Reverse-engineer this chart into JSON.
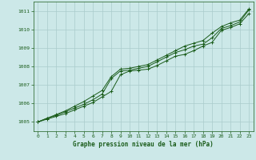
{
  "title": "Graphe pression niveau de la mer (hPa)",
  "background_color": "#cce8e8",
  "grid_color": "#aacccc",
  "line_color": "#1a5c1a",
  "marker_color": "#1a5c1a",
  "xlim": [
    -0.5,
    23.5
  ],
  "ylim": [
    1004.5,
    1011.5
  ],
  "yticks": [
    1005,
    1006,
    1007,
    1008,
    1009,
    1010,
    1011
  ],
  "xticks": [
    0,
    1,
    2,
    3,
    4,
    5,
    6,
    7,
    8,
    9,
    10,
    11,
    12,
    13,
    14,
    15,
    16,
    17,
    18,
    19,
    20,
    21,
    22,
    23
  ],
  "series": [
    [
      1005.0,
      1005.15,
      1005.3,
      1005.45,
      1005.65,
      1005.85,
      1006.05,
      1006.35,
      1006.65,
      1007.55,
      1007.75,
      1007.8,
      1007.85,
      1008.05,
      1008.3,
      1008.55,
      1008.65,
      1008.85,
      1009.1,
      1009.3,
      1009.95,
      1010.1,
      1010.3,
      1010.85
    ],
    [
      1005.0,
      1005.2,
      1005.35,
      1005.55,
      1005.75,
      1005.95,
      1006.2,
      1006.5,
      1007.35,
      1007.75,
      1007.8,
      1007.9,
      1008.0,
      1008.25,
      1008.5,
      1008.75,
      1008.9,
      1009.1,
      1009.2,
      1009.55,
      1010.05,
      1010.2,
      1010.4,
      1011.05
    ],
    [
      1005.0,
      1005.2,
      1005.4,
      1005.6,
      1005.85,
      1006.1,
      1006.4,
      1006.7,
      1007.45,
      1007.85,
      1007.9,
      1008.0,
      1008.1,
      1008.35,
      1008.6,
      1008.85,
      1009.1,
      1009.25,
      1009.4,
      1009.8,
      1010.15,
      1010.35,
      1010.5,
      1011.1
    ]
  ]
}
